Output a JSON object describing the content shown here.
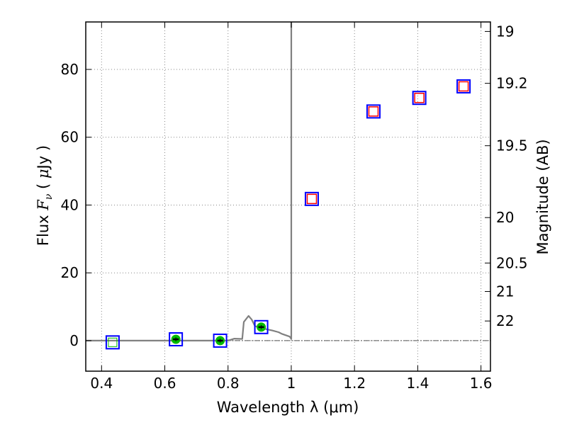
{
  "chart_data": {
    "type": "scatter",
    "xlabel": "Wavelength  λ (μm)",
    "ylabel": "Flux  F_ν  ( μJy )",
    "ylabel_parts": {
      "pre": "Flux  ",
      "var": "F",
      "sub": "ν",
      "post": "  (  ",
      "mu": "μ",
      "unit": "Jy )"
    },
    "y2label": "Magnitude (AB)",
    "xlim": [
      0.35,
      1.63
    ],
    "ylim": [
      -9,
      94
    ],
    "grid": true,
    "x_ticks": [
      0.4,
      0.6,
      0.8,
      1.0,
      1.2,
      1.4,
      1.6
    ],
    "x_tick_labels": [
      "0.4",
      "0.6",
      "0.8",
      "1",
      "1.2",
      "1.4",
      "1.6"
    ],
    "y_ticks": [
      0,
      20,
      40,
      60,
      80
    ],
    "y_tick_labels": [
      "0",
      "20",
      "40",
      "60",
      "80"
    ],
    "y2_ticks": [
      {
        "label": "19",
        "flux": 91.2
      },
      {
        "label": "19.2",
        "flux": 75.9
      },
      {
        "label": "19.5",
        "flux": 57.5
      },
      {
        "label": "20",
        "flux": 36.3
      },
      {
        "label": "20.5",
        "flux": 22.9
      },
      {
        "label": "21",
        "flux": 14.5
      },
      {
        "label": "22",
        "flux": 5.8
      }
    ],
    "series": [
      {
        "role": "model_points",
        "marker": "blue-open-square",
        "x": [
          0.435,
          0.635,
          0.775,
          0.905,
          1.065,
          1.26,
          1.405,
          1.545
        ],
        "y": [
          -0.5,
          0.4,
          0.0,
          4.0,
          41.8,
          67.6,
          71.6,
          75.0
        ]
      },
      {
        "role": "detections",
        "marker": "green-filled-circle",
        "x": [
          0.635,
          0.775,
          0.905
        ],
        "y": [
          0.4,
          0.0,
          4.0
        ],
        "yerr": [
          0.6,
          0.6,
          0.6
        ]
      },
      {
        "role": "nondetection_upper",
        "marker": "green-open-square",
        "x": [
          0.435
        ],
        "y": [
          -0.5
        ]
      },
      {
        "role": "observed_red",
        "marker": "red-open-square",
        "x": [
          1.065,
          1.26,
          1.405,
          1.545
        ],
        "y": [
          41.8,
          67.6,
          71.6,
          75.0
        ]
      },
      {
        "role": "sed_model",
        "line": "gray",
        "x": [
          0.35,
          0.8,
          0.82,
          0.845,
          0.85,
          0.865,
          0.875,
          0.885,
          0.9,
          0.94,
          0.96,
          0.97,
          0.995,
          1.0,
          1.0
        ],
        "y": [
          0.0,
          0.0,
          0.6,
          0.5,
          5.5,
          7.3,
          6.2,
          4.3,
          3.8,
          3.0,
          2.5,
          2.0,
          1.2,
          0.5,
          94.0
        ]
      }
    ],
    "colors": {
      "model_points": "#0000ff",
      "detections": "#00bb00",
      "observed_red": "#ff0000",
      "sed_model": "#808080",
      "grid": "#888888"
    }
  }
}
